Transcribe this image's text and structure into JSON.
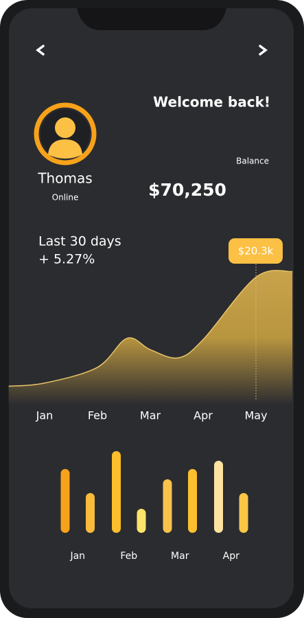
{
  "header": {
    "greeting": "Welcome back!",
    "balance_label": "Balance",
    "balance": "$70,250"
  },
  "user": {
    "name": "Thomas",
    "status": "Online"
  },
  "summary": {
    "period": "Last 30 days",
    "change": "+ 5.27%"
  },
  "chart_data": [
    {
      "type": "area",
      "categories": [
        "Jan",
        "Feb",
        "Mar",
        "Apr",
        "May"
      ],
      "x": [
        -0.68,
        0,
        1,
        1.56,
        2,
        2.53,
        3,
        4,
        4.69
      ],
      "values": [
        3,
        3.5,
        6,
        10.6,
        8.8,
        7.5,
        10.4,
        20.3,
        21.2
      ],
      "color": "#e9c46a",
      "ylim": [
        0,
        22
      ],
      "annotation": {
        "x": 4,
        "label": "$20.3k",
        "color": "#fcc045"
      }
    },
    {
      "type": "bar",
      "categories": [
        "Jan",
        "Feb",
        "Mar",
        "Apr"
      ],
      "ylim": [
        0,
        120
      ],
      "series": [
        {
          "colors": [
            "#f7a21a",
            "#fcbe2a",
            "#f9c24a",
            "#fde3a0"
          ],
          "values": [
            93,
            119,
            78,
            105
          ]
        },
        {
          "colors": [
            "#f8bb3a",
            "#fde36a",
            "#fcc02e",
            "#f9c646"
          ],
          "values": [
            58,
            35,
            93,
            58
          ]
        }
      ]
    }
  ]
}
